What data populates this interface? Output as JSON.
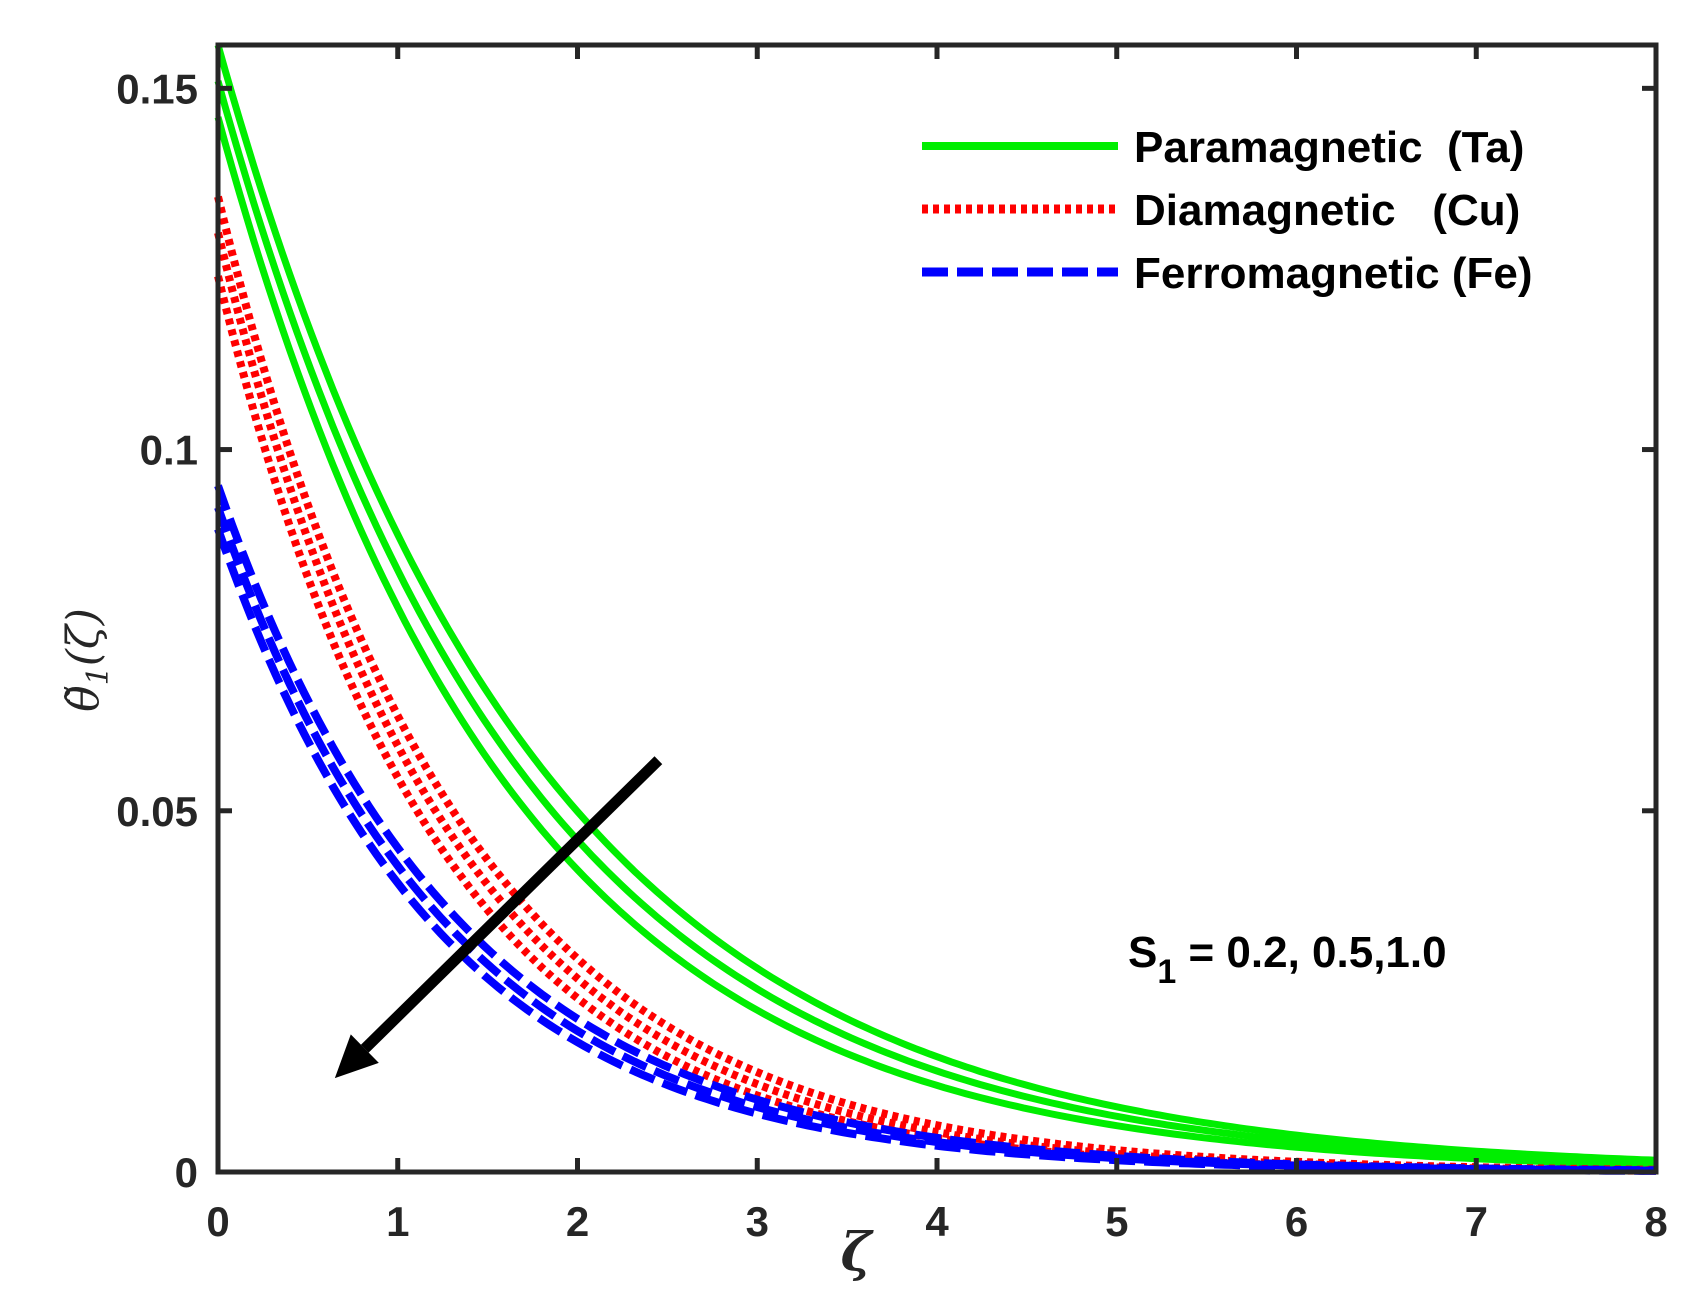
{
  "chart_data": {
    "type": "line",
    "xlabel": "ζ",
    "ylabel": {
      "main": "θ̃",
      "sub": "1",
      "arg": "(ζ)"
    },
    "xlim": [
      0,
      8
    ],
    "ylim": [
      0,
      0.156
    ],
    "xticks": [
      0,
      1,
      2,
      3,
      4,
      5,
      6,
      7,
      8
    ],
    "yticks": [
      0,
      0.05,
      0.1,
      0.15
    ],
    "ytick_labels": [
      "0",
      "0.05",
      "0.1",
      "0.15"
    ],
    "grid": false,
    "legend_position": "top-right",
    "colors": {
      "paramagnetic": "#00ee00",
      "diamagnetic": "#ff0000",
      "ferromagnetic": "#0000ff",
      "axis": "#262626"
    },
    "groups": [
      {
        "name": "Paramagnetic  (Ta)",
        "style": "solid",
        "color": "#00ee00",
        "curves": [
          {
            "y0": 0.156,
            "k": 0.57
          },
          {
            "y0": 0.151,
            "k": 0.595
          },
          {
            "y0": 0.146,
            "k": 0.625
          }
        ]
      },
      {
        "name": "Diamagnetic   (Cu)",
        "style": "dotted",
        "color": "#ff0000",
        "curves": [
          {
            "y0": 0.135,
            "k": 0.76
          },
          {
            "y0": 0.13,
            "k": 0.79
          },
          {
            "y0": 0.124,
            "k": 0.82
          }
        ]
      },
      {
        "name": "Ferromagnetic (Fe)",
        "style": "dashed",
        "color": "#0000ff",
        "curves": [
          {
            "y0": 0.095,
            "k": 0.75
          },
          {
            "y0": 0.092,
            "k": 0.775
          },
          {
            "y0": 0.089,
            "k": 0.8
          }
        ]
      }
    ],
    "annotation": {
      "text_main": "S",
      "text_sub": "1",
      "text_rest": " = 0.2, 0.5,1.0"
    },
    "arrow": {
      "from": [
        2.45,
        0.057
      ],
      "to": [
        0.65,
        0.013
      ]
    }
  }
}
